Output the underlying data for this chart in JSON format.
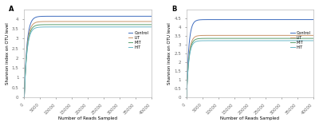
{
  "figsize": [
    4.0,
    1.58
  ],
  "dpi": 100,
  "panels": [
    "A",
    "B"
  ],
  "x_max": 40000,
  "x_ticks": [
    0,
    5000,
    10000,
    15000,
    20000,
    25000,
    30000,
    35000,
    40000
  ],
  "x_label": "Number of Reads Sampled",
  "y_label": "Shannon index on OTU level",
  "legend_labels": [
    "Control",
    "LIT",
    "MIT",
    "HIT"
  ],
  "colors": [
    "#3f6dbf",
    "#c8956a",
    "#5b9e6e",
    "#6ab8c8"
  ],
  "panel_A": {
    "y_lim": [
      0,
      4.5
    ],
    "y_ticks": [
      0,
      0.5,
      1.0,
      1.5,
      2.0,
      2.5,
      3.0,
      3.5,
      4.0
    ],
    "asymptotes": [
      4.15,
      3.88,
      3.72,
      3.6
    ],
    "rise_rate": 0.0012
  },
  "panel_B": {
    "y_lim": [
      0,
      5.0
    ],
    "y_ticks": [
      0,
      0.5,
      1.0,
      1.5,
      2.0,
      2.5,
      3.0,
      3.5,
      4.0,
      4.5
    ],
    "asymptotes": [
      4.42,
      3.52,
      3.35,
      3.22
    ],
    "rise_rate": 0.0014
  },
  "background_color": "#ffffff",
  "spine_color": "#aaaaaa",
  "tick_color": "#666666",
  "line_width": 0.7,
  "font_size": 4.0,
  "label_font_size": 4.0,
  "legend_font_size": 3.5,
  "panel_label_fontsize": 6.0
}
